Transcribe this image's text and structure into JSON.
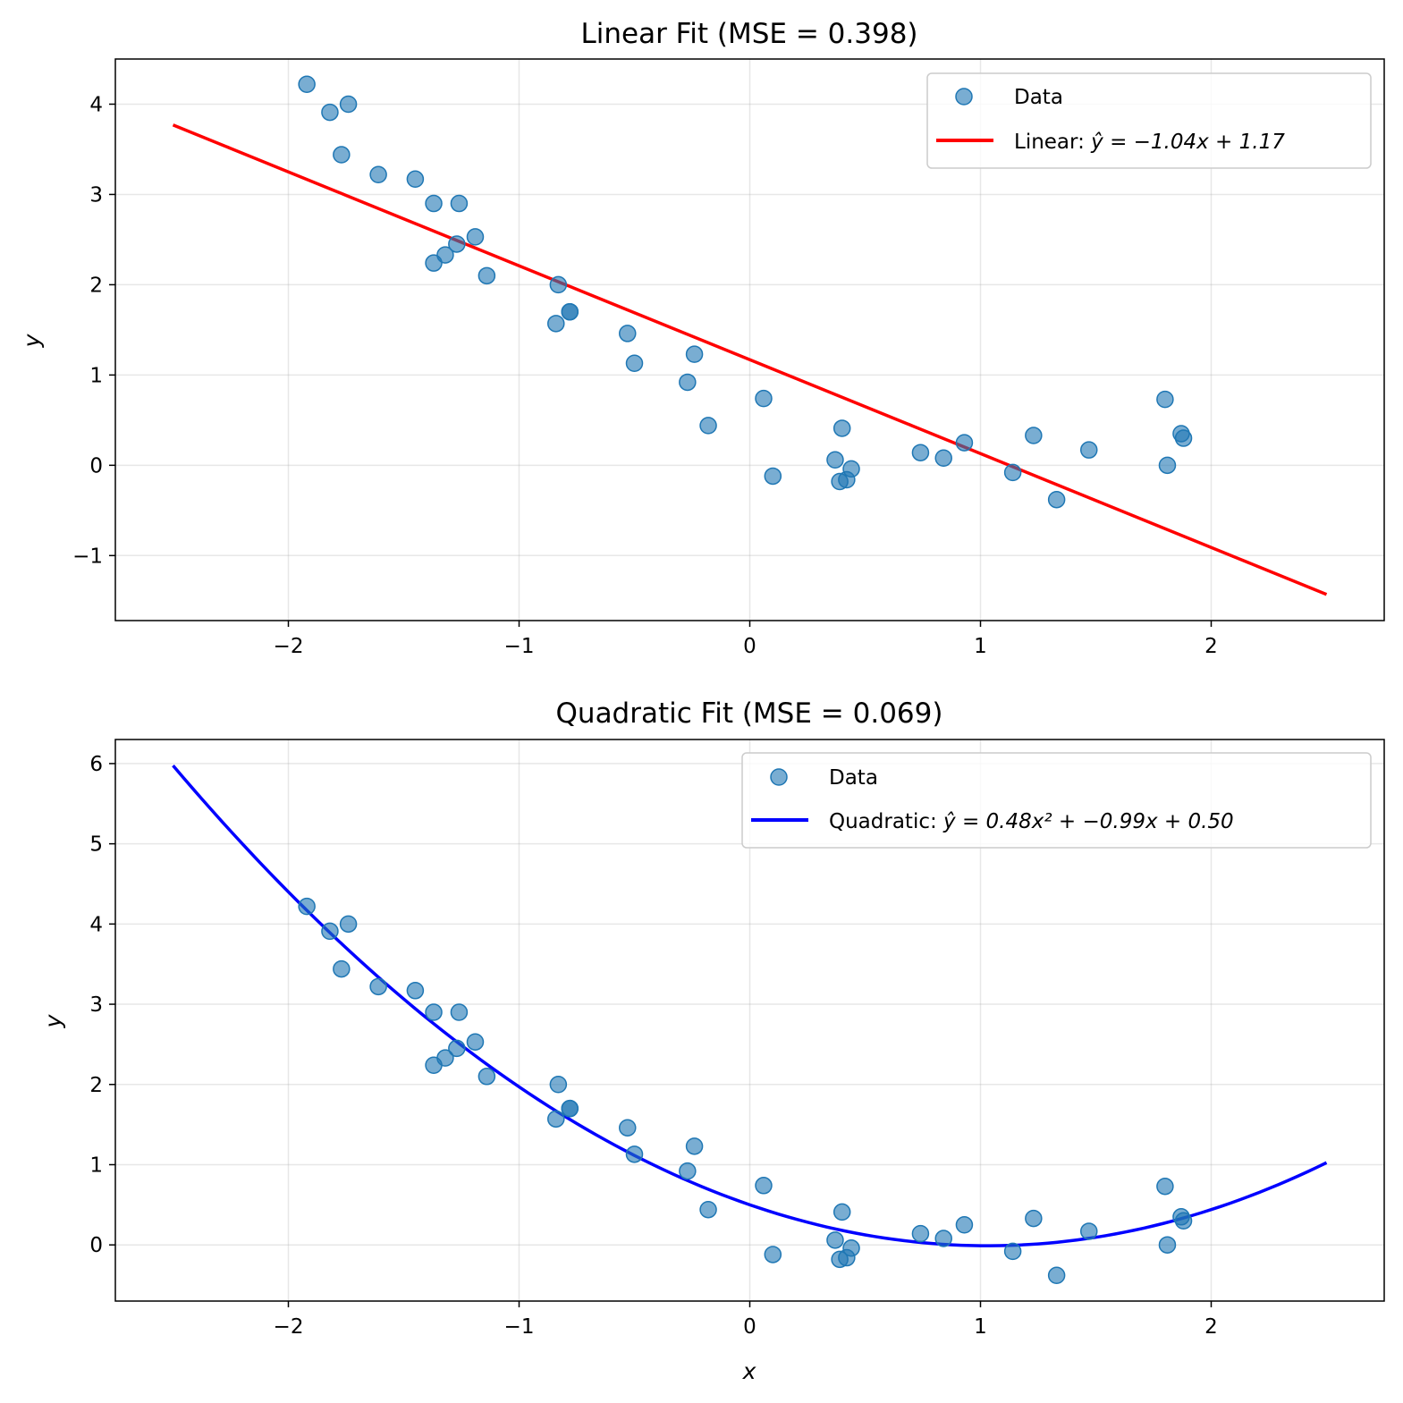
{
  "chart_data": [
    {
      "type": "scatter",
      "title": "Linear Fit (MSE = 0.398)",
      "xlabel": "",
      "ylabel": "y",
      "xlim": [
        -2.75,
        2.75
      ],
      "ylim": [
        -1.72,
        4.5
      ],
      "xticks": [
        -2,
        -1,
        0,
        1,
        2
      ],
      "yticks": [
        -1,
        0,
        1,
        2,
        3,
        4
      ],
      "grid": true,
      "legend_position": "top-right",
      "fit": {
        "kind": "linear",
        "coefficients": [
          -1.04,
          1.17
        ],
        "x_range": [
          -2.5,
          2.5
        ],
        "color": "#ff0000"
      },
      "legend": {
        "data_label": "Data",
        "fit_label_prefix": "Linear: ",
        "fit_equation": "ŷ = −1.04x + 1.17"
      }
    },
    {
      "type": "scatter",
      "title": "Quadratic Fit (MSE = 0.069)",
      "xlabel": "x",
      "ylabel": "y",
      "xlim": [
        -2.75,
        2.75
      ],
      "ylim": [
        -0.7,
        6.3
      ],
      "xticks": [
        -2,
        -1,
        0,
        1,
        2
      ],
      "yticks": [
        0,
        1,
        2,
        3,
        4,
        5,
        6
      ],
      "grid": true,
      "legend_position": "top-right",
      "fit": {
        "kind": "quadratic",
        "coefficients": [
          0.48,
          -0.99,
          0.5
        ],
        "x_range": [
          -2.5,
          2.5
        ],
        "color": "#0000ff"
      },
      "legend": {
        "data_label": "Data",
        "fit_label_prefix": "Quadratic: ",
        "fit_equation": "ŷ = 0.48x² + −0.99x + 0.50"
      }
    }
  ],
  "scatter_points": {
    "color": "#1f77b4",
    "x": [
      -1.92,
      -1.82,
      -1.74,
      -1.77,
      -1.61,
      -1.45,
      -1.37,
      -1.26,
      -1.37,
      -1.32,
      -1.27,
      -1.19,
      -1.14,
      -0.83,
      -0.84,
      -0.78,
      -0.78,
      -0.53,
      -0.5,
      -0.24,
      -0.27,
      -0.18,
      0.06,
      0.1,
      0.37,
      0.4,
      0.39,
      0.42,
      0.44,
      0.74,
      0.84,
      0.93,
      1.14,
      1.23,
      1.33,
      1.47,
      1.8,
      1.81,
      1.87,
      1.88
    ],
    "y": [
      4.22,
      3.91,
      4.0,
      3.44,
      3.22,
      3.17,
      2.9,
      2.9,
      2.24,
      2.33,
      2.45,
      2.53,
      2.1,
      2.0,
      1.57,
      1.7,
      1.7,
      1.46,
      1.13,
      1.23,
      0.92,
      0.44,
      0.74,
      -0.12,
      0.06,
      0.41,
      -0.18,
      -0.16,
      -0.04,
      0.14,
      0.08,
      0.25,
      -0.08,
      0.33,
      -0.38,
      0.17,
      0.73,
      0.0,
      0.35,
      0.3
    ]
  }
}
